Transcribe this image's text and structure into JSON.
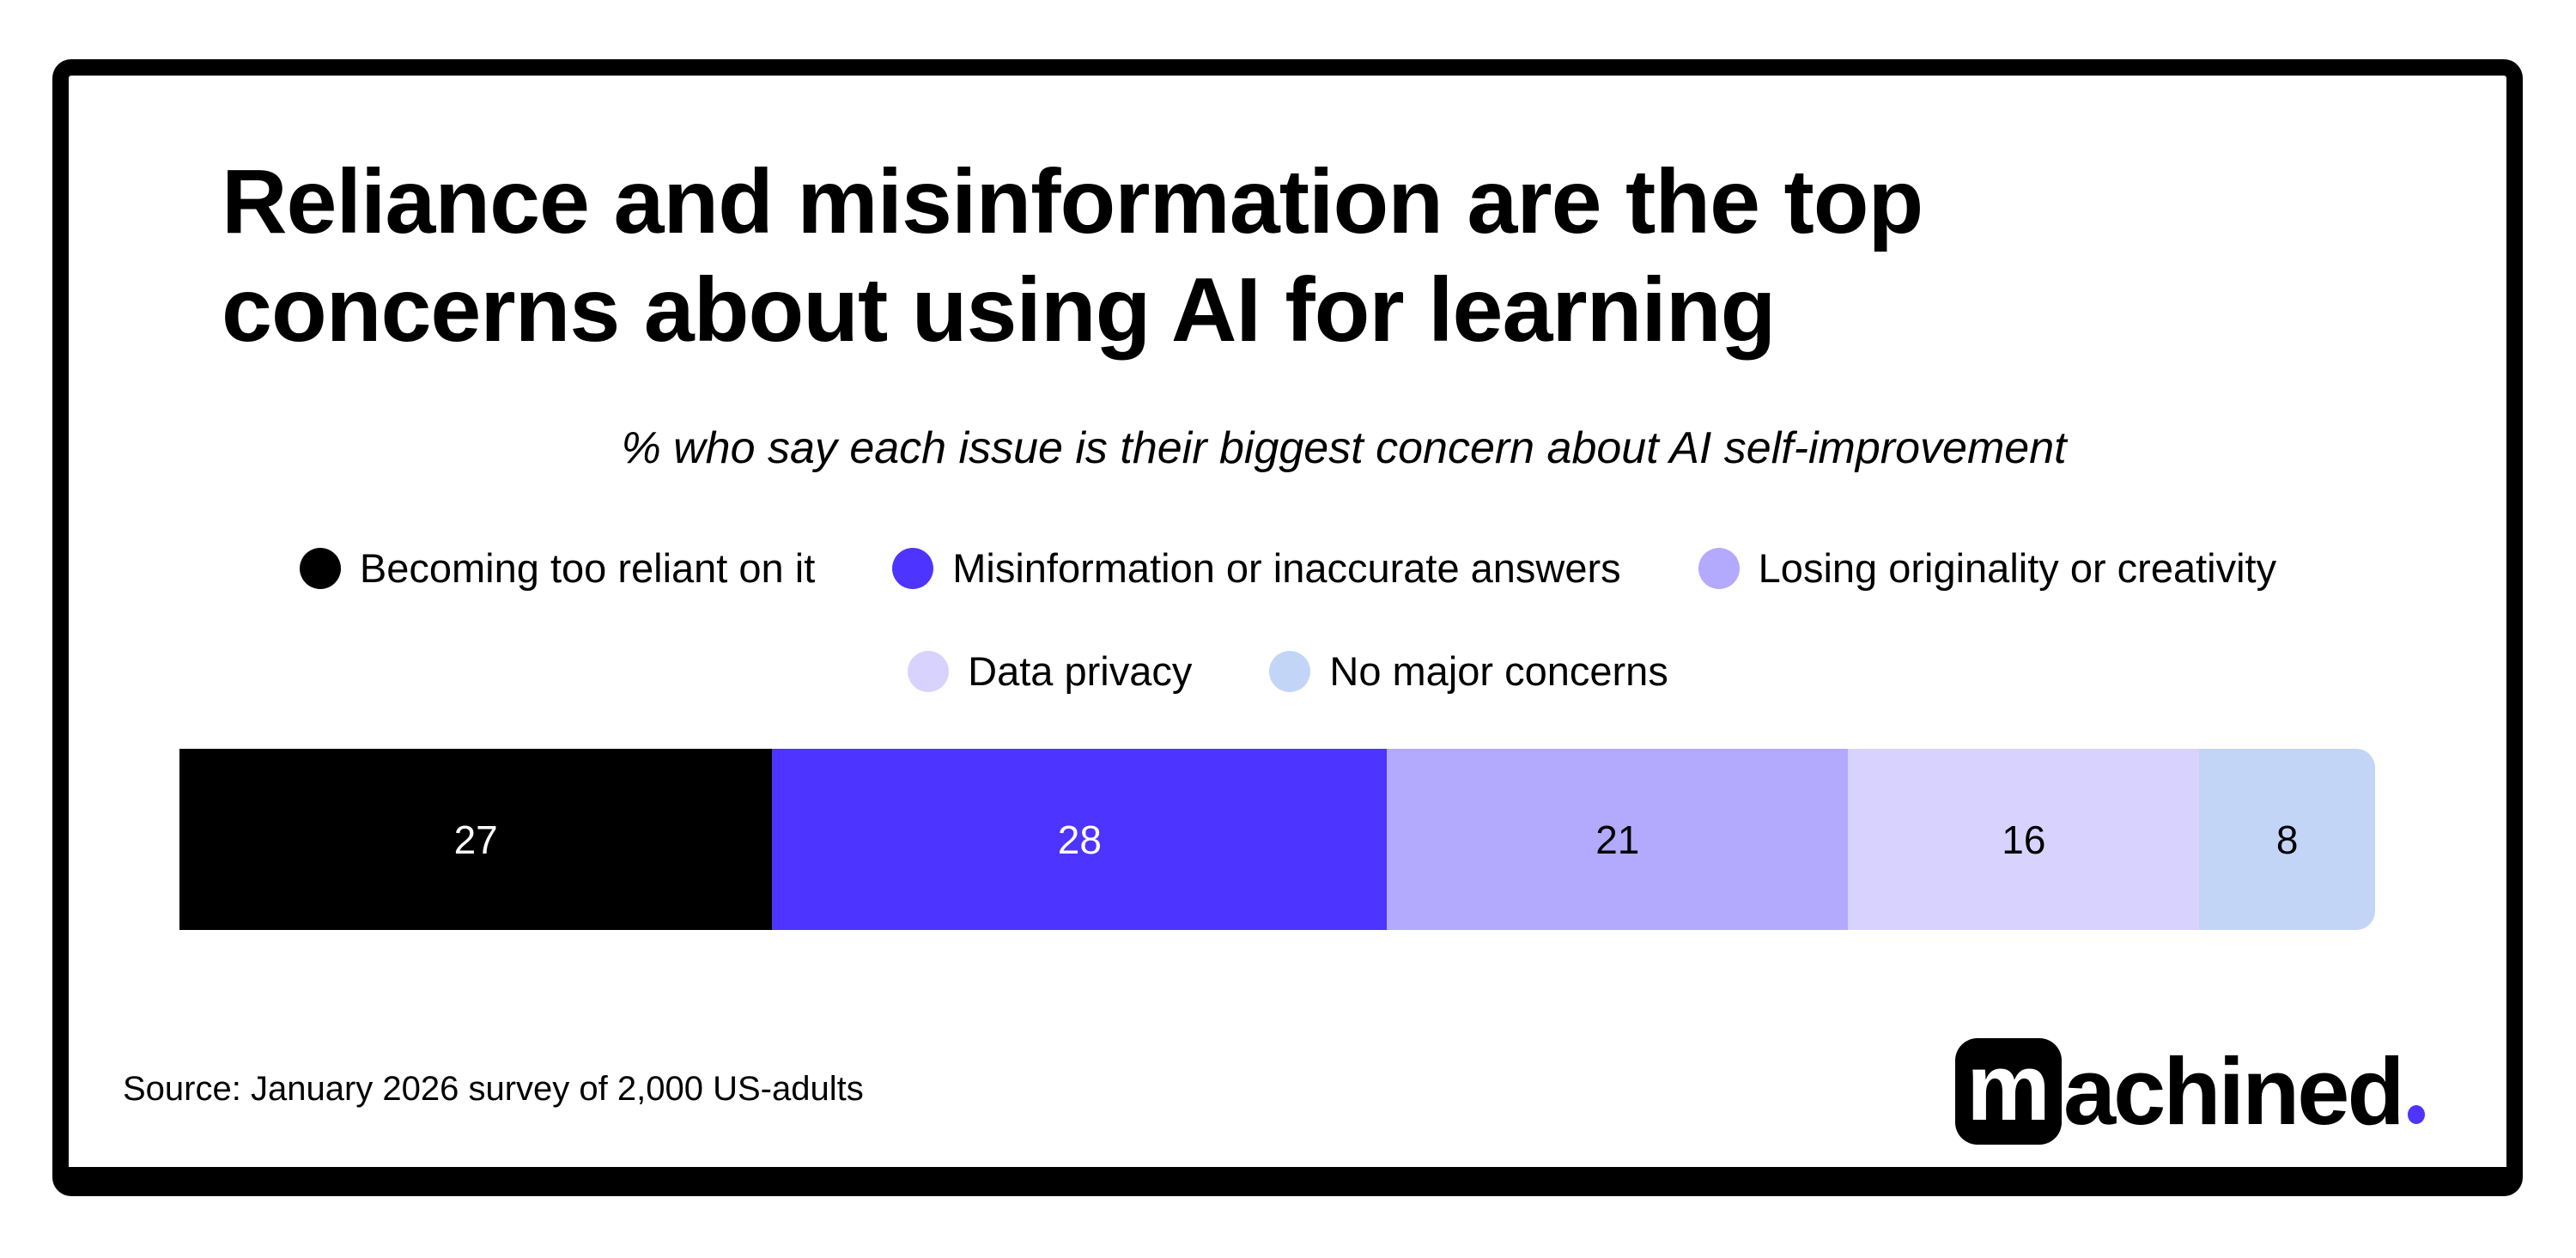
{
  "chart_data": {
    "type": "bar",
    "orientation": "horizontal-stacked",
    "title": "Reliance and misinformation are the top concerns about using AI for learning",
    "subtitle": "% who say each issue is their biggest concern about AI self-improvement",
    "series": [
      {
        "name": "Becoming too reliant on it",
        "value": 27,
        "color": "#000000",
        "label_color": "#ffffff"
      },
      {
        "name": "Misinformation or inaccurate answers",
        "value": 28,
        "color": "#4d34ff",
        "label_color": "#ffffff"
      },
      {
        "name": "Losing originality or creativity",
        "value": 21,
        "color": "#b3aafe",
        "label_color": "#000000"
      },
      {
        "name": "Data privacy",
        "value": 16,
        "color": "#d8d3fe",
        "label_color": "#000000"
      },
      {
        "name": "No major concerns",
        "value": 8,
        "color": "#c3d5f7",
        "label_color": "#000000"
      }
    ],
    "xlim": [
      0,
      100
    ],
    "legend_placement": "top",
    "grid": false
  },
  "footer": {
    "source": "Source:  January 2026 survey of 2,000 US-adults",
    "logo": "machined."
  }
}
